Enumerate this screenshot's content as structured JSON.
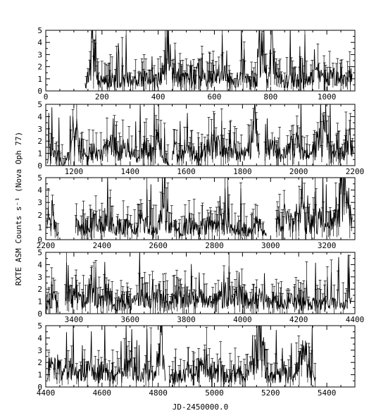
{
  "chart_data": {
    "type": "line",
    "xlabel": "JD-2450000.0",
    "ylabel": "RXTE ASM Counts s⁻¹ (Nova Oph 77)",
    "panels": [
      {
        "xlim": [
          0,
          1100
        ],
        "ylim": [
          0,
          5
        ],
        "xticks": [
          0,
          200,
          400,
          600,
          800,
          1000
        ],
        "yticks": [
          0,
          1,
          2,
          3,
          4,
          5
        ],
        "segments": [
          [
            [
              140,
              0.6
            ],
            [
              150,
              1.2
            ],
            [
              160,
              2.5
            ],
            [
              165,
              4.9
            ],
            [
              170,
              3.0
            ],
            [
              180,
              1.0
            ],
            [
              200,
              0.8
            ],
            [
              230,
              1.1
            ],
            [
              260,
              0.6
            ],
            [
              290,
              1.3
            ],
            [
              320,
              0.8
            ],
            [
              350,
              1.2
            ],
            [
              380,
              0.9
            ],
            [
              410,
              1.1
            ],
            [
              435,
              4.9
            ],
            [
              445,
              2.0
            ]
          ],
          [
            [
              450,
              1.4
            ],
            [
              480,
              1.2
            ],
            [
              510,
              0.9
            ],
            [
              540,
              1.5
            ],
            [
              570,
              1.0
            ],
            [
              600,
              1.3
            ],
            [
              630,
              1.6
            ],
            [
              660,
              0.8
            ],
            [
              690,
              1.2
            ],
            [
              720,
              1.4
            ],
            [
              750,
              0.9
            ],
            [
              765,
              3.8
            ],
            [
              780,
              4.9
            ],
            [
              790,
              0.3
            ],
            [
              800,
              4.9
            ],
            [
              820,
              1.2
            ],
            [
              850,
              0.8
            ],
            [
              880,
              1.2
            ],
            [
              910,
              0.7
            ],
            [
              940,
              1.1
            ],
            [
              970,
              1.5
            ],
            [
              1000,
              1.0
            ],
            [
              1030,
              1.3
            ],
            [
              1060,
              0.9
            ],
            [
              1090,
              1.4
            ]
          ]
        ]
      },
      {
        "xlim": [
          1100,
          2200
        ],
        "ylim": [
          0,
          5
        ],
        "xticks": [
          1200,
          1400,
          1600,
          1800,
          2000,
          2200
        ],
        "yticks": [
          0,
          1,
          2,
          3,
          4,
          5
        ],
        "segments": [
          [
            [
              1105,
              0.6
            ],
            [
              1120,
              1.8
            ],
            [
              1135,
              0.7
            ],
            [
              1145,
              0.9
            ],
            [
              1160,
              0.0
            ],
            [
              1185,
              1.1
            ],
            [
              1210,
              2.8
            ],
            [
              1240,
              0.7
            ],
            [
              1270,
              1.5
            ],
            [
              1300,
              0.9
            ],
            [
              1330,
              2.0
            ],
            [
              1360,
              1.1
            ],
            [
              1390,
              1.6
            ],
            [
              1420,
              0.8
            ],
            [
              1450,
              1.5
            ],
            [
              1480,
              1.2
            ],
            [
              1500,
              3.1
            ],
            [
              1515,
              0.9
            ],
            [
              1540,
              0.0
            ]
          ],
          [
            [
              1550,
              1.5
            ],
            [
              1580,
              1.0
            ],
            [
              1610,
              1.8
            ],
            [
              1640,
              0.7
            ],
            [
              1670,
              1.3
            ],
            [
              1700,
              2.2
            ],
            [
              1730,
              1.0
            ],
            [
              1760,
              1.6
            ],
            [
              1790,
              0.9
            ],
            [
              1820,
              1.4
            ],
            [
              1845,
              3.2
            ],
            [
              1860,
              0.9
            ]
          ],
          [
            [
              1880,
              1.2
            ],
            [
              1910,
              1.8
            ],
            [
              1940,
              0.8
            ],
            [
              1970,
              1.5
            ],
            [
              2000,
              2.1
            ],
            [
              2030,
              1.0
            ],
            [
              2060,
              1.7
            ],
            [
              2090,
              2.5
            ],
            [
              2120,
              1.1
            ],
            [
              2150,
              1.6
            ],
            [
              2180,
              2.3
            ],
            [
              2195,
              1.0
            ]
          ]
        ]
      },
      {
        "xlim": [
          2200,
          3300
        ],
        "ylim": [
          0,
          5
        ],
        "xticks": [
          2200,
          2400,
          2600,
          2800,
          3000,
          3200
        ],
        "yticks": [
          0,
          1,
          2,
          3,
          4,
          5
        ],
        "segments": [
          [
            [
              2205,
              1.5
            ],
            [
              2220,
              2.4
            ],
            [
              2235,
              1.0
            ],
            [
              2245,
              0.6
            ]
          ],
          [
            [
              2305,
              1.3
            ],
            [
              2330,
              0.8
            ],
            [
              2360,
              1.6
            ],
            [
              2390,
              1.1
            ],
            [
              2420,
              2.0
            ],
            [
              2450,
              0.9
            ],
            [
              2480,
              1.4
            ],
            [
              2510,
              0.8
            ],
            [
              2540,
              1.7
            ],
            [
              2570,
              1.0
            ],
            [
              2590,
              0.7
            ],
            [
              2615,
              2.1
            ],
            [
              2640,
              1.3
            ],
            [
              2650,
              1.0
            ]
          ],
          [
            [
              2655,
              1.2
            ],
            [
              2680,
              0.8
            ],
            [
              2710,
              1.5
            ],
            [
              2740,
              0.9
            ],
            [
              2770,
              1.3
            ],
            [
              2800,
              1.1
            ],
            [
              2830,
              1.6
            ],
            [
              2860,
              0.8
            ],
            [
              2890,
              1.2
            ],
            [
              2920,
              0.7
            ],
            [
              2950,
              1.3
            ],
            [
              2970,
              1.0
            ],
            [
              2985,
              0.3
            ]
          ],
          [
            [
              3020,
              1.2
            ],
            [
              3050,
              2.0
            ],
            [
              3080,
              1.5
            ],
            [
              3110,
              2.5
            ],
            [
              3140,
              1.3
            ],
            [
              3170,
              1.8
            ],
            [
              3200,
              1.2
            ],
            [
              3230,
              2.0
            ],
            [
              3260,
              4.7
            ],
            [
              3290,
              1.9
            ]
          ]
        ]
      },
      {
        "xlim": [
          3300,
          4400
        ],
        "ylim": [
          0,
          5
        ],
        "xticks": [
          3400,
          3600,
          3800,
          4000,
          4200,
          4400
        ],
        "yticks": [
          0,
          1,
          2,
          3,
          4,
          5
        ],
        "segments": [
          [
            [
              3300,
              1.0
            ],
            [
              3315,
              0.8
            ],
            [
              3330,
              1.3
            ],
            [
              3345,
              0.6
            ]
          ],
          [
            [
              3370,
              1.0
            ],
            [
              3400,
              1.6
            ],
            [
              3430,
              0.9
            ],
            [
              3460,
              2.6
            ],
            [
              3490,
              1.2
            ],
            [
              3520,
              1.8
            ],
            [
              3550,
              0.8
            ],
            [
              3580,
              1.4
            ],
            [
              3610,
              0.9
            ],
            [
              3640,
              1.5
            ],
            [
              3670,
              1.0
            ],
            [
              3700,
              1.7
            ],
            [
              3730,
              0.9
            ],
            [
              3760,
              1.3
            ],
            [
              3790,
              1.8
            ],
            [
              3820,
              1.1
            ],
            [
              3850,
              1.5
            ],
            [
              3880,
              0.9
            ],
            [
              3910,
              1.4
            ],
            [
              3940,
              1.9
            ],
            [
              3970,
              1.2
            ],
            [
              4000,
              1.6
            ],
            [
              4030,
              0.9
            ],
            [
              4060,
              1.4
            ],
            [
              4090,
              1.0
            ],
            [
              4120,
              1.3
            ],
            [
              4150,
              0.8
            ],
            [
              4180,
              1.2
            ],
            [
              4210,
              0.9
            ],
            [
              4240,
              1.1
            ],
            [
              4270,
              0.7
            ],
            [
              4300,
              1.0
            ],
            [
              4330,
              0.8
            ],
            [
              4360,
              1.1
            ],
            [
              4390,
              1.3
            ]
          ]
        ]
      },
      {
        "xlim": [
          4400,
          5500
        ],
        "ylim": [
          0,
          5
        ],
        "xticks": [
          4400,
          4600,
          4800,
          5000,
          5200,
          5400
        ],
        "yticks": [
          0,
          1,
          2,
          3,
          4,
          5
        ],
        "segments": [
          [
            [
              4405,
              1.4
            ],
            [
              4430,
              2.2
            ],
            [
              4460,
              1.0
            ],
            [
              4490,
              1.6
            ],
            [
              4520,
              0.9
            ],
            [
              4550,
              1.8
            ],
            [
              4580,
              1.1
            ],
            [
              4610,
              1.5
            ],
            [
              4640,
              0.8
            ],
            [
              4670,
              1.3
            ],
            [
              4700,
              1.9
            ],
            [
              4730,
              1.0
            ],
            [
              4760,
              1.4
            ],
            [
              4790,
              0.9
            ],
            [
              4810,
              4.9
            ],
            [
              4825,
              0.5
            ]
          ],
          [
            [
              4840,
              1.2
            ],
            [
              4870,
              0.8
            ],
            [
              4900,
              1.5
            ],
            [
              4930,
              1.0
            ],
            [
              4960,
              1.8
            ],
            [
              4990,
              1.2
            ],
            [
              5020,
              1.6
            ],
            [
              5050,
              0.9
            ],
            [
              5080,
              1.4
            ],
            [
              5110,
              1.1
            ],
            [
              5140,
              1.9
            ],
            [
              5165,
              4.9
            ],
            [
              5185,
              1.3
            ],
            [
              5210,
              0.8
            ],
            [
              5240,
              1.5
            ],
            [
              5270,
              1.0
            ],
            [
              5300,
              1.6
            ],
            [
              5320,
              3.9
            ],
            [
              5340,
              1.2
            ],
            [
              5360,
              0.8
            ]
          ]
        ]
      }
    ]
  }
}
